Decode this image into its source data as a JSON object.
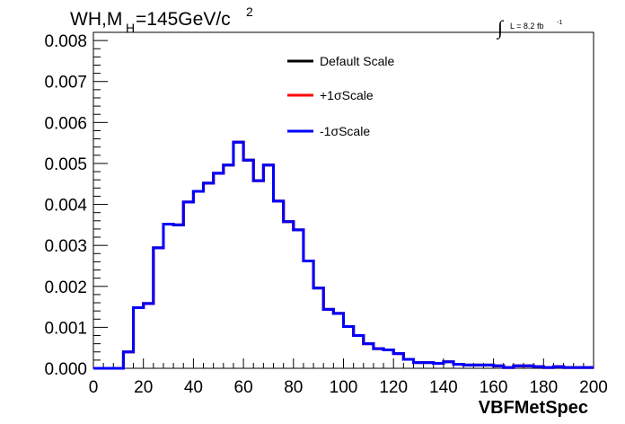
{
  "chart_data": {
    "type": "line",
    "step": true,
    "title": {
      "prefix": "WH,M",
      "subscript": "H",
      "suffix": "=145GeV/c",
      "superscript": "2"
    },
    "lumi": {
      "integral": "∫",
      "text": "L = 8.2 fb",
      "superscript": "-1"
    },
    "xlabel": "VBFMetSpec",
    "ylabel": "",
    "xlim": [
      0,
      200
    ],
    "ylim": [
      0,
      0.0082
    ],
    "x_ticks": [
      0,
      20,
      40,
      60,
      80,
      100,
      120,
      140,
      160,
      180,
      200
    ],
    "x_tick_labels": [
      "0",
      "20",
      "40",
      "60",
      "80",
      "100",
      "120",
      "140",
      "160",
      "180",
      "200"
    ],
    "y_ticks": [
      0,
      0.001,
      0.002,
      0.003,
      0.004,
      0.005,
      0.006,
      0.007,
      0.008
    ],
    "y_tick_labels": [
      "0.000",
      "0.001",
      "0.002",
      "0.003",
      "0.004",
      "0.005",
      "0.006",
      "0.007",
      "0.008"
    ],
    "bin_width": 4,
    "bin_edges_start": 0,
    "series": [
      {
        "name": "Default Scale",
        "color": "#000000",
        "values": [
          0,
          0,
          0,
          0.0004,
          0.00148,
          0.00158,
          0.00294,
          0.00352,
          0.0035,
          0.00406,
          0.00432,
          0.00452,
          0.00476,
          0.00496,
          0.00552,
          0.00508,
          0.00458,
          0.00496,
          0.00408,
          0.00358,
          0.00338,
          0.00262,
          0.00196,
          0.00144,
          0.00134,
          0.00102,
          0.0008,
          0.0006,
          0.00048,
          0.00045,
          0.00036,
          0.00022,
          0.00014,
          0.00014,
          0.00012,
          0.00016,
          0.0001,
          8e-05,
          8e-05,
          8e-05,
          6e-05,
          2e-05,
          6e-05,
          6e-05,
          4e-05,
          2e-05,
          4e-05,
          2e-05,
          2e-05,
          2e-05
        ]
      },
      {
        "name": "+1σScale",
        "color": "#ff0000",
        "values": [
          0,
          0,
          0,
          0.0004,
          0.00148,
          0.00158,
          0.00294,
          0.00352,
          0.0035,
          0.00406,
          0.00432,
          0.00452,
          0.00476,
          0.00496,
          0.00552,
          0.00508,
          0.00458,
          0.00496,
          0.00408,
          0.00358,
          0.00338,
          0.00262,
          0.00196,
          0.00144,
          0.00134,
          0.00102,
          0.0008,
          0.0006,
          0.00048,
          0.00045,
          0.00036,
          0.00022,
          0.00014,
          0.00014,
          0.00012,
          0.00016,
          0.0001,
          8e-05,
          8e-05,
          8e-05,
          6e-05,
          2e-05,
          6e-05,
          6e-05,
          4e-05,
          2e-05,
          4e-05,
          2e-05,
          2e-05,
          2e-05
        ]
      },
      {
        "name": "-1σScale",
        "color": "#0000ff",
        "values": [
          0,
          0,
          0,
          0.0004,
          0.00148,
          0.00158,
          0.00294,
          0.00352,
          0.0035,
          0.00406,
          0.00432,
          0.00452,
          0.00476,
          0.00496,
          0.00552,
          0.00508,
          0.00458,
          0.00496,
          0.00408,
          0.00358,
          0.00338,
          0.00262,
          0.00196,
          0.00144,
          0.00134,
          0.00102,
          0.0008,
          0.0006,
          0.00048,
          0.00045,
          0.00036,
          0.00022,
          0.00014,
          0.00014,
          0.00012,
          0.00016,
          0.0001,
          8e-05,
          8e-05,
          8e-05,
          6e-05,
          2e-05,
          6e-05,
          6e-05,
          4e-05,
          2e-05,
          4e-05,
          2e-05,
          2e-05,
          2e-05
        ]
      }
    ],
    "legend": {
      "placement": "top-center",
      "entries": [
        "Default Scale",
        "+1σScale",
        "-1σScale"
      ]
    },
    "grid": false
  }
}
